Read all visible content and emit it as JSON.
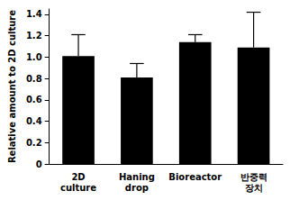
{
  "chart_data": {
    "type": "bar",
    "y_label": "Relative amount to 2D culture",
    "categories": [
      "2D culture",
      "Haning drop",
      "Bioreactor",
      "반중력 장치"
    ],
    "values": [
      1.01,
      0.81,
      1.14,
      1.09
    ],
    "errors": [
      0.2,
      0.13,
      0.07,
      0.33
    ],
    "color": "#000000",
    "ylim": [
      0,
      1.45
    ],
    "yticks": [
      0,
      0.2,
      0.4,
      0.6,
      0.8,
      {
        "value": 1,
        "label": "1.0"
      },
      1.2,
      1.4
    ],
    "grid": false
  }
}
